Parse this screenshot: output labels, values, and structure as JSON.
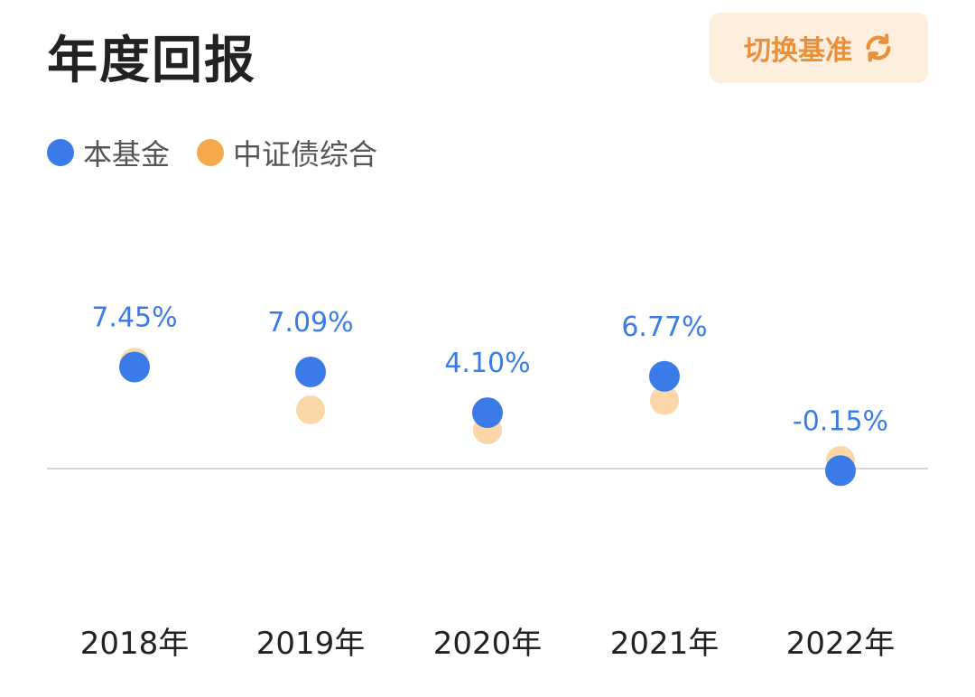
{
  "header": {
    "title": "年度回报",
    "switch_label": "切换基准"
  },
  "colors": {
    "fund": "#3b7be8",
    "benchmark": "#f6a94a",
    "benchmark_fill": "#fbd6a9",
    "accent": "#e8903a"
  },
  "icons": {
    "switch": "refresh-icon"
  },
  "chart_data": {
    "type": "scatter",
    "categories": [
      "2018年",
      "2019年",
      "2020年",
      "2021年",
      "2022年"
    ],
    "series": [
      {
        "name": "本基金",
        "values": [
          7.45,
          7.09,
          4.1,
          6.77,
          -0.15
        ],
        "labels": [
          "7.45%",
          "7.09%",
          "4.10%",
          "6.77%",
          "-0.15%"
        ]
      },
      {
        "name": "中证债综合",
        "values": [
          7.8,
          4.3,
          2.85,
          5.0,
          0.6
        ]
      }
    ],
    "baseline": 0,
    "ylim": [
      -5,
      12
    ],
    "grid": false,
    "legend": "top-left"
  }
}
